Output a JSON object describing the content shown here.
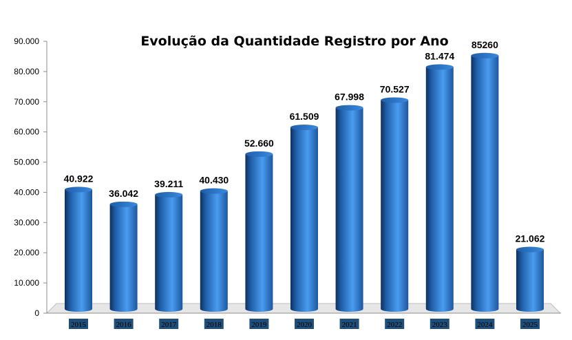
{
  "chart_data": {
    "type": "bar",
    "title": "Evolução da Quantidade Registro por Ano",
    "xlabel": "",
    "ylabel": "",
    "categories": [
      "2015",
      "2016",
      "2017",
      "2018",
      "2019",
      "2020",
      "2021",
      "2022",
      "2023",
      "2024",
      "2025"
    ],
    "values": [
      40922,
      36042,
      39211,
      40430,
      52660,
      61509,
      67998,
      70527,
      81474,
      85260,
      21062
    ],
    "data_labels": [
      "40.922",
      "36.042",
      "39.211",
      "40.430",
      "52.660",
      "61.509",
      "67.998",
      "70.527",
      "81.474",
      "85260",
      "21.062"
    ],
    "y_ticks": [
      0,
      10000,
      20000,
      30000,
      40000,
      50000,
      60000,
      70000,
      80000,
      90000
    ],
    "y_tick_labels": [
      "0",
      "10.000",
      "20.000",
      "30.000",
      "40.000",
      "50.000",
      "60.000",
      "70.000",
      "80.000",
      "90.000"
    ],
    "ylim": [
      0,
      90000
    ],
    "grid": false,
    "legend": "none",
    "colors": {
      "bar": "#2f7fd6",
      "bar_dark": "#12305a",
      "bar_light": "#5aa8f5",
      "floor": "#e6e6e6",
      "tick_label_bg": "#1f4e79"
    }
  }
}
